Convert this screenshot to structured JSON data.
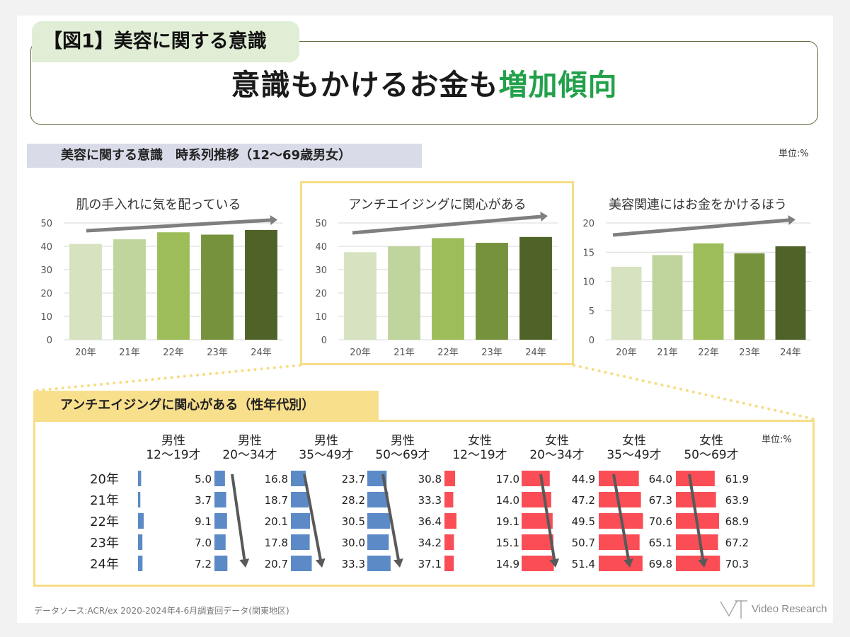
{
  "figure_label": "【図1】美容に関する意識",
  "headline": {
    "normal": "意識もかけるお金も",
    "highlight": "増加傾向"
  },
  "section_title": "美容に関する意識　時系列推移（12～69歳男女）",
  "unit_label": "単位:%",
  "detail_title": "アンチエイジングに関心がある（性年代別）",
  "detail_unit_label": "単位:%",
  "footer_source": "データソース:ACR/ex 2020-2024年4-6月調査回データ(関東地区)",
  "logo_text": "Video Research",
  "colors": {
    "year_bars": [
      "#d7e3c0",
      "#c0d59e",
      "#9cbd5a",
      "#77923d",
      "#4f6228"
    ],
    "male": "#5b8ac7",
    "female": "#fa4d55",
    "arrow": "#666666",
    "highlight_green": "#22a14a"
  },
  "chart_data": [
    {
      "type": "bar",
      "title": "肌の手入れに気を配っている",
      "categories": [
        "20年",
        "21年",
        "22年",
        "23年",
        "24年"
      ],
      "values": [
        41,
        43,
        46,
        45,
        47
      ],
      "ylim": [
        0,
        50
      ],
      "yticks": [
        0,
        10,
        20,
        30,
        40,
        50
      ]
    },
    {
      "type": "bar",
      "title": "アンチエイジングに関心がある",
      "categories": [
        "20年",
        "21年",
        "22年",
        "23年",
        "24年"
      ],
      "values": [
        37.5,
        40,
        43.5,
        41.5,
        44
      ],
      "ylim": [
        0,
        50
      ],
      "yticks": [
        0,
        10,
        20,
        30,
        40,
        50
      ]
    },
    {
      "type": "bar",
      "title": "美容関連にはお金をかけるほう",
      "categories": [
        "20年",
        "21年",
        "22年",
        "23年",
        "24年"
      ],
      "values": [
        12.5,
        14.5,
        16.5,
        14.8,
        16
      ],
      "ylim": [
        0,
        20
      ],
      "yticks": [
        0,
        5,
        10,
        15,
        20
      ]
    },
    {
      "type": "table",
      "title": "アンチエイジングに関心がある（性年代別）",
      "rows": [
        "20年",
        "21年",
        "22年",
        "23年",
        "24年"
      ],
      "groups": [
        {
          "gender": "男性",
          "age": "12～19才",
          "sex": "male",
          "values": [
            5.0,
            3.7,
            9.1,
            7.0,
            7.2
          ]
        },
        {
          "gender": "男性",
          "age": "20～34才",
          "sex": "male",
          "values": [
            16.8,
            18.7,
            20.1,
            17.8,
            20.7
          ]
        },
        {
          "gender": "男性",
          "age": "35～49才",
          "sex": "male",
          "values": [
            23.7,
            28.2,
            30.5,
            30.0,
            33.3
          ]
        },
        {
          "gender": "男性",
          "age": "50～69才",
          "sex": "male",
          "values": [
            30.8,
            33.3,
            36.4,
            34.2,
            37.1
          ]
        },
        {
          "gender": "女性",
          "age": "12～19才",
          "sex": "female",
          "values": [
            17.0,
            14.0,
            19.1,
            15.1,
            14.9
          ]
        },
        {
          "gender": "女性",
          "age": "20～34才",
          "sex": "female",
          "values": [
            44.9,
            47.2,
            49.5,
            50.7,
            51.4
          ]
        },
        {
          "gender": "女性",
          "age": "35～49才",
          "sex": "female",
          "values": [
            64.0,
            67.3,
            70.6,
            65.1,
            69.8
          ]
        },
        {
          "gender": "女性",
          "age": "50～69才",
          "sex": "female",
          "values": [
            61.9,
            63.9,
            68.9,
            67.2,
            70.3
          ]
        }
      ]
    }
  ]
}
